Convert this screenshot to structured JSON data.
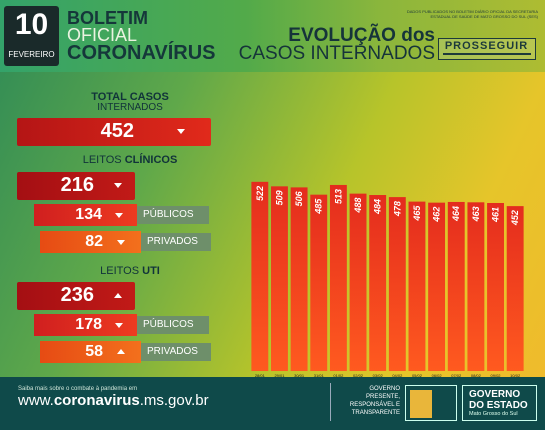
{
  "header": {
    "day": "10",
    "month": "FEVEREIRO",
    "title_line1": "BOLETIM",
    "title_line2": "OFICIAL",
    "title_line3": "CORONAVÍRUS",
    "evolution_line1": "EVOLUÇÃO dos",
    "evolution_line2": "CASOS INTERNADOS",
    "source_note": "DADOS PUBLICADOS NO BOLETIM DIÁRIO OFICIAL DA SECRETARIA ESTADUAL DE SAÚDE DE MATO GROSSO DO SUL (SES)",
    "prosseguir": "PROSSEGUIR"
  },
  "totals": {
    "total_label_bold": "TOTAL CASOS",
    "total_label": "INTERNADOS",
    "total_value": "452",
    "clinicos_label": "LEITOS",
    "clinicos_label_bold": "CLÍNICOS",
    "clinicos_total": "216",
    "clinicos_publicos": "134",
    "clinicos_privados": "82",
    "uti_label": "LEITOS",
    "uti_label_bold": "UTI",
    "uti_total": "236",
    "uti_publicos": "178",
    "uti_privados": "58",
    "publicos_tag": "PÚBLICOS",
    "privados_tag": "PRIVADOS"
  },
  "chart_data": {
    "type": "bar",
    "categories": [
      "28/01",
      "29/01",
      "30/01",
      "31/01",
      "01/02",
      "02/02",
      "03/02",
      "04/02",
      "05/02",
      "06/02",
      "07/02",
      "08/02",
      "09/02",
      "10/02"
    ],
    "values": [
      522,
      509,
      506,
      485,
      513,
      488,
      484,
      478,
      465,
      462,
      464,
      463,
      461,
      452
    ],
    "title": "",
    "xlabel": "",
    "ylabel": "",
    "ylim": [
      0,
      560
    ],
    "colors": {
      "bar_top": "#e42c1e",
      "bar_bottom": "#ff5a1f"
    }
  },
  "footer": {
    "note": "Saiba mais sobre o combate à pandemia em",
    "url_prefix": "www.",
    "url_bold": "coronavirus",
    "url_suffix": ".ms.gov.br",
    "gov_line1": "GOVERNO",
    "gov_line2": "PRESENTE,",
    "gov_line3": "RESPONSÁVEL E",
    "gov_line4": "TRANSPARENTE",
    "estado_line1": "GOVERNO",
    "estado_line2": "DO ESTADO",
    "estado_line3": "Mato Grosso do Sul"
  }
}
